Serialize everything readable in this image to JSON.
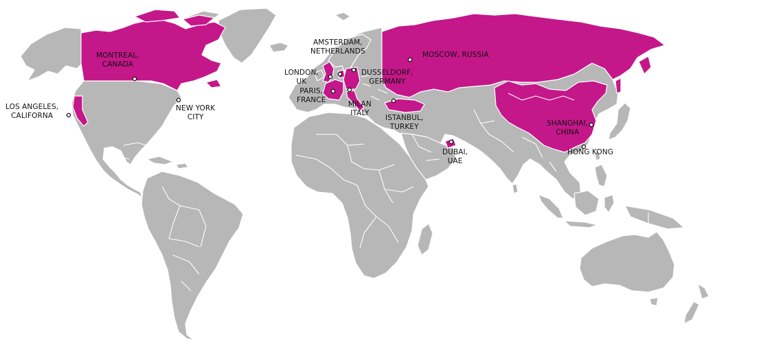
{
  "map": {
    "colors": {
      "land": "#b7b7b7",
      "highlight": "#c4178a",
      "water": "#ffffff",
      "border": "#ffffff",
      "marker_stroke": "#111111"
    },
    "highlighted_regions": [
      "Canada",
      "California",
      "United Kingdom",
      "France",
      "Netherlands",
      "Germany",
      "Italy",
      "Russia",
      "Turkey",
      "United Arab Emirates",
      "China"
    ],
    "cities": [
      {
        "id": "los-angeles",
        "lines": [
          "LOS ANGELES,",
          "CALIFORNA"
        ]
      },
      {
        "id": "montreal",
        "lines": [
          "MONTREAL,",
          "CANADA"
        ]
      },
      {
        "id": "new-york",
        "lines": [
          "NEW YORK",
          "CITY"
        ]
      },
      {
        "id": "london",
        "lines": [
          "LONDON,",
          "UK"
        ]
      },
      {
        "id": "amsterdam",
        "lines": [
          "AMSTERDAM,",
          "NETHERLANDS"
        ]
      },
      {
        "id": "paris",
        "lines": [
          "PARIS,",
          "FRANCE"
        ]
      },
      {
        "id": "dusseldorf",
        "lines": [
          "DUSSELDORF,",
          "GERMANY"
        ]
      },
      {
        "id": "milan",
        "lines": [
          "MILAN",
          "ITALY"
        ]
      },
      {
        "id": "moscow",
        "lines": [
          "MOSCOW, RUSSIA"
        ]
      },
      {
        "id": "istanbul",
        "lines": [
          "ISTANBUL,",
          "TURKEY"
        ]
      },
      {
        "id": "dubai",
        "lines": [
          "DUBAI,",
          "UAE"
        ]
      },
      {
        "id": "shanghai",
        "lines": [
          "SHANGHAI,",
          "CHINA"
        ]
      },
      {
        "id": "hong-kong",
        "lines": [
          "HONG KONG"
        ]
      }
    ]
  }
}
